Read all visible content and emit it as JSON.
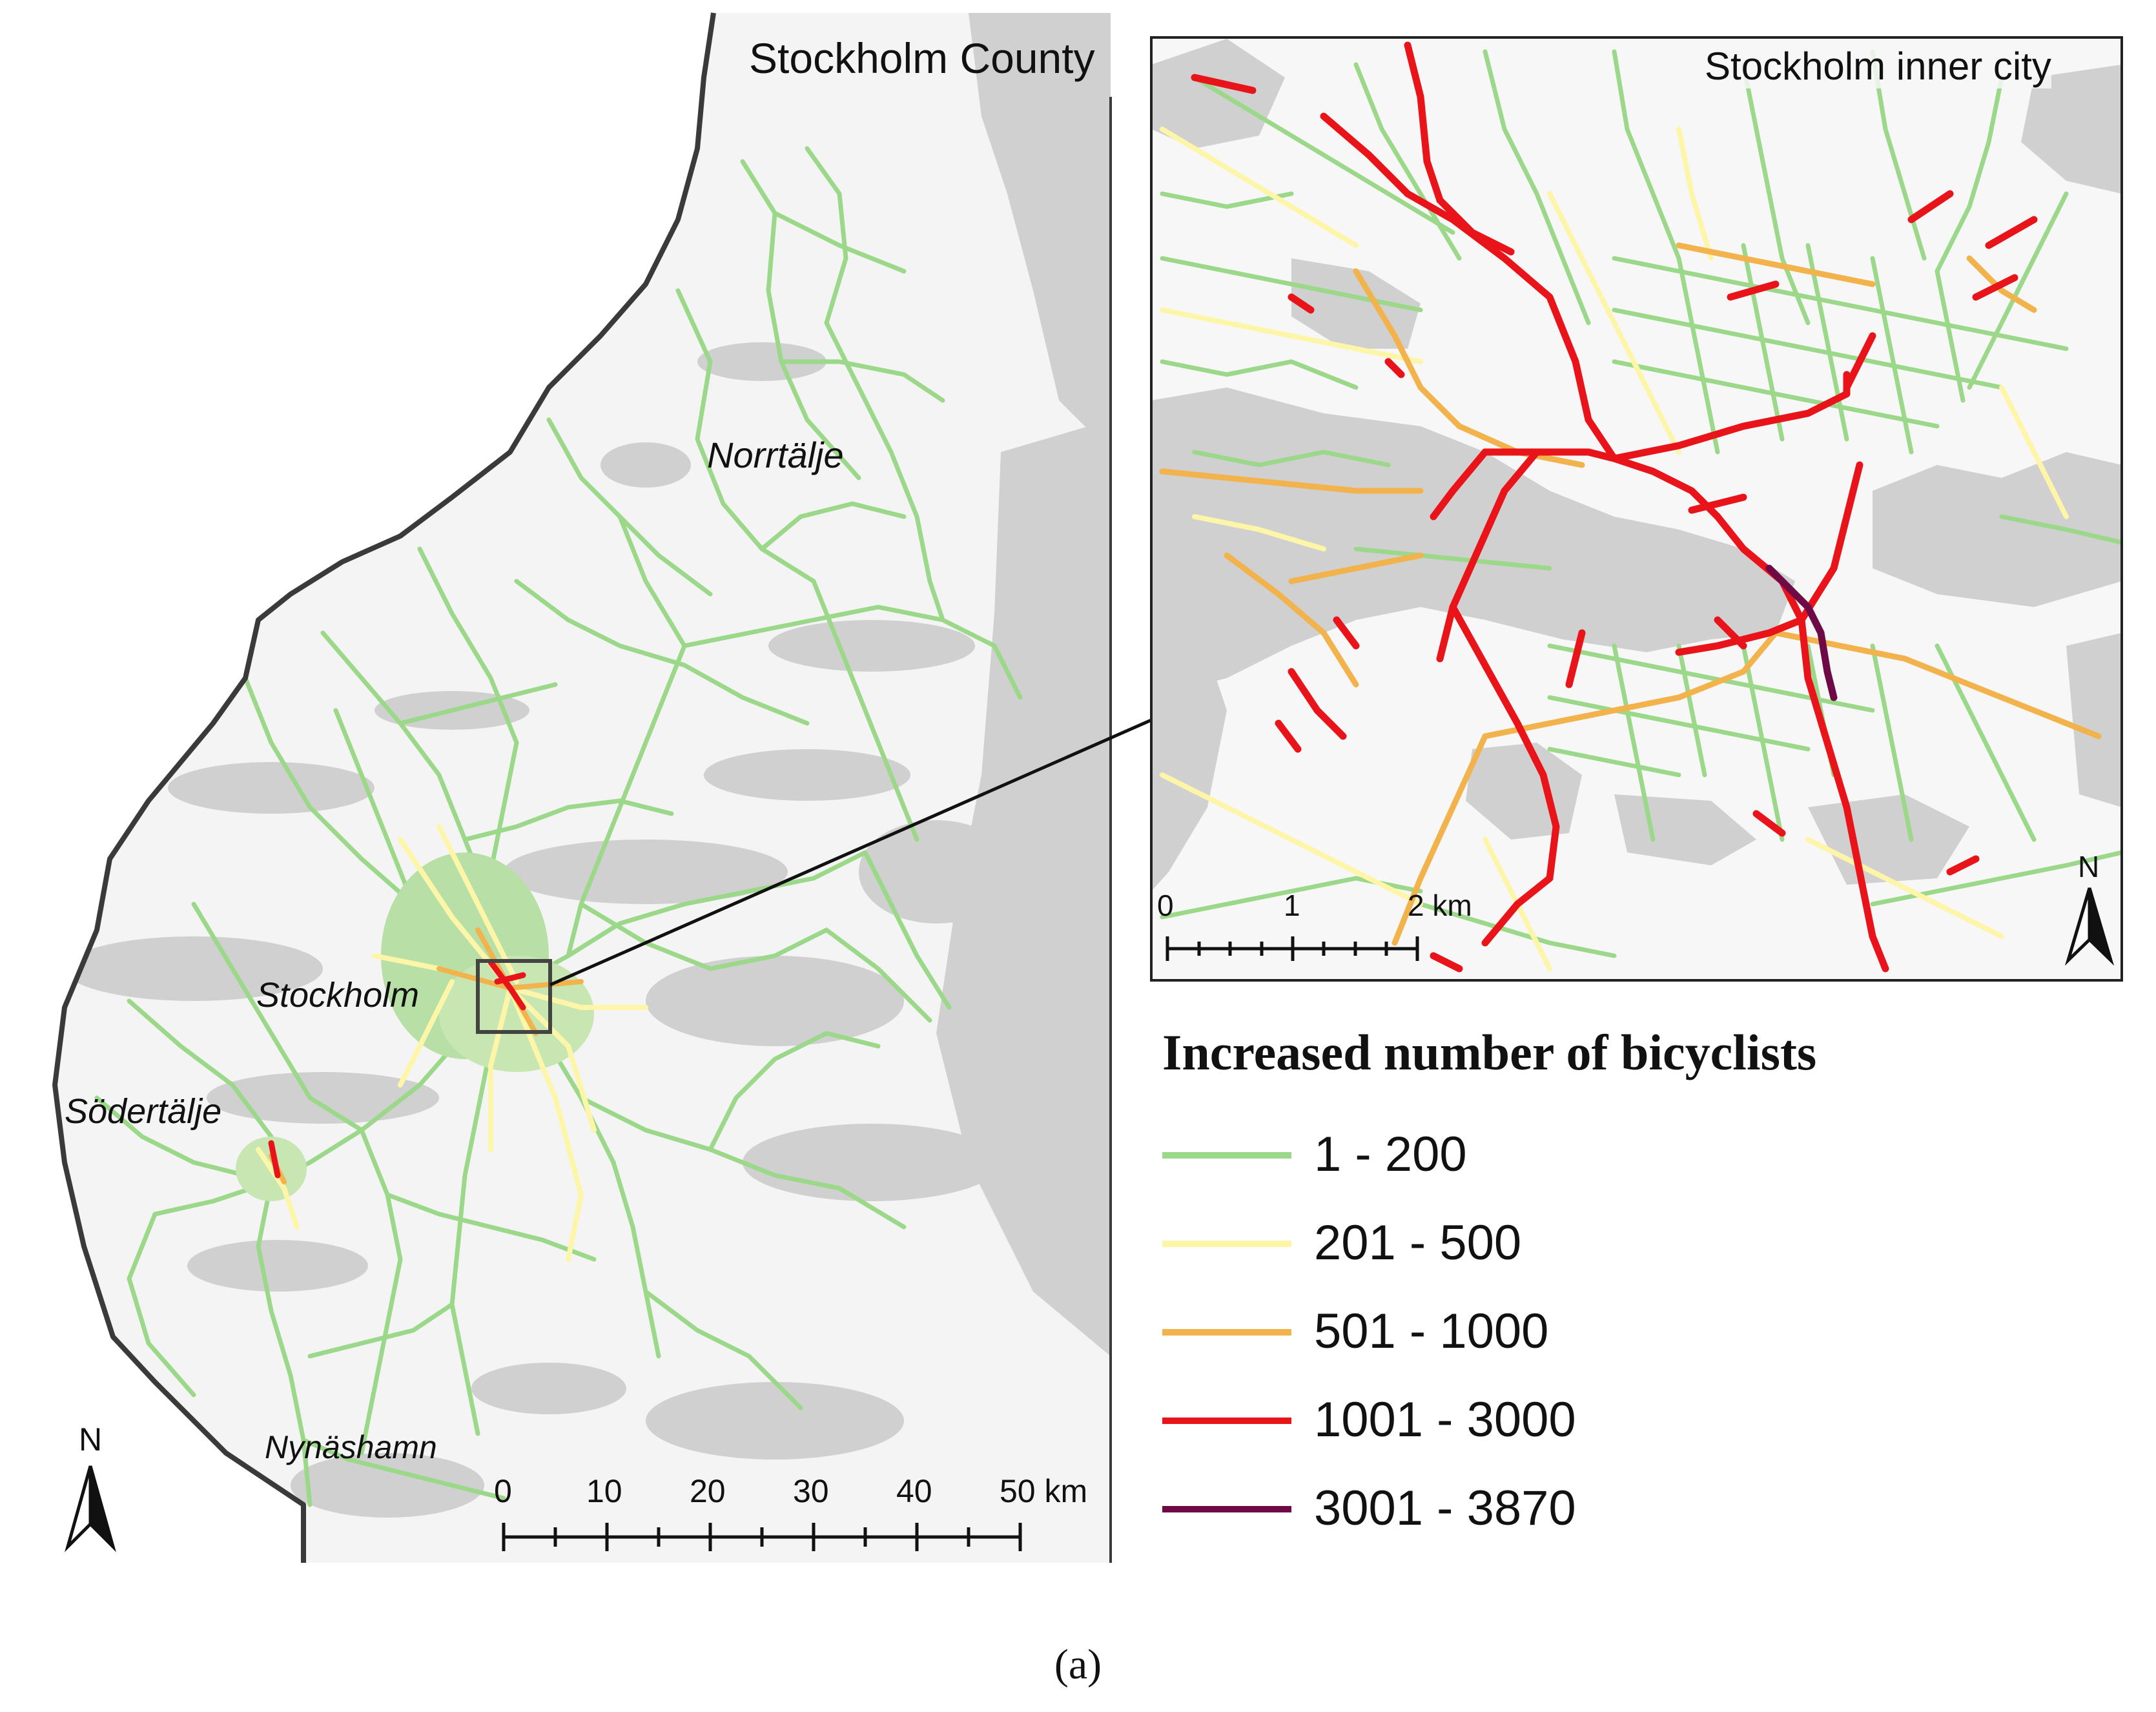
{
  "county_map": {
    "title": "Stockholm County",
    "places": [
      {
        "id": "norrtalje",
        "name": "Norrtälje"
      },
      {
        "id": "stockholm",
        "name": "Stockholm"
      },
      {
        "id": "sodertalje",
        "name": "Södertälje"
      },
      {
        "id": "nynashamn",
        "name": "Nynäshamn"
      }
    ],
    "north_label": "N",
    "scale": {
      "ticks": [
        "0",
        "10",
        "20",
        "30",
        "40",
        "50 km"
      ]
    }
  },
  "inset_map": {
    "title": "Stockholm inner city",
    "north_label": "N",
    "scale": {
      "ticks": [
        "0",
        "1",
        "2 km"
      ]
    }
  },
  "legend": {
    "title": "Increased number of bicyclists",
    "items": [
      {
        "label": "1 - 200",
        "color": "#9cd889"
      },
      {
        "label": "201 - 500",
        "color": "#fdf6a8"
      },
      {
        "label": "501 - 1000",
        "color": "#f2b24c"
      },
      {
        "label": "1001 - 3000",
        "color": "#e8141a"
      },
      {
        "label": "3001 - 3870",
        "color": "#6e0a45"
      }
    ]
  },
  "colors": {
    "land_gray": "#d4d4d4",
    "boundary": "#3a3a3a",
    "map_bg": "#f4f4f4"
  },
  "caption": "(a)"
}
